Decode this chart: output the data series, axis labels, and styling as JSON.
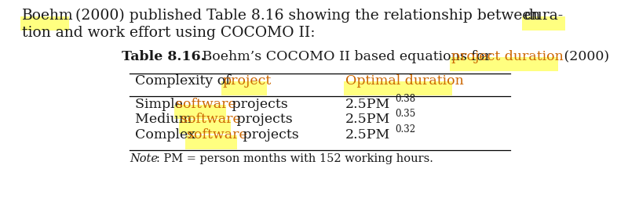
{
  "background_color": "#ffffff",
  "highlight_color": "#ffff80",
  "text_color": "#1a1a1a",
  "orange_color": "#cc6600",
  "font_family": "DejaVu Serif",
  "fs_intro": 13.5,
  "fs_title": 12.5,
  "fs_table": 12.5,
  "fs_super": 8.5,
  "fs_note": 10.5,
  "intro_line1": {
    "segments": [
      {
        "t": "Boehm",
        "hl": true,
        "bold": false,
        "color": null
      },
      {
        "t": " (2000) published Table 8.16 showing the relationship between ",
        "hl": false,
        "bold": false,
        "color": null
      },
      {
        "t": "dura-",
        "hl": true,
        "bold": false,
        "color": null
      }
    ]
  },
  "intro_line2": "tion and work effort using COCOMO II:",
  "table_caption": {
    "segments": [
      {
        "t": "Table 8.16.",
        "bold": true,
        "hl": false,
        "color": null
      },
      {
        "t": " Boehm’s COCOMO II based equations for ",
        "bold": false,
        "hl": false,
        "color": null
      },
      {
        "t": "project duration",
        "bold": false,
        "hl": true,
        "color": "#cc6600"
      },
      {
        "t": " (2000)",
        "bold": false,
        "hl": false,
        "color": null
      }
    ]
  },
  "header": {
    "col1": [
      {
        "t": "Complexity of ",
        "hl": false,
        "color": null
      },
      {
        "t": "project",
        "hl": true,
        "color": "#cc6600"
      }
    ],
    "col2": [
      {
        "t": "Optimal duration",
        "hl": true,
        "color": "#cc6600"
      }
    ]
  },
  "rows": [
    {
      "col1": [
        {
          "t": "Simple ",
          "hl": false,
          "color": null
        },
        {
          "t": "software",
          "hl": true,
          "color": "#cc6600"
        },
        {
          "t": " projects",
          "hl": false,
          "color": null
        }
      ],
      "formula": "2.5PM",
      "exp": "0.38"
    },
    {
      "col1": [
        {
          "t": "Medium ",
          "hl": false,
          "color": null
        },
        {
          "t": "software",
          "hl": true,
          "color": "#cc6600"
        },
        {
          "t": " projects",
          "hl": false,
          "color": null
        }
      ],
      "formula": "2.5PM",
      "exp": "0.35"
    },
    {
      "col1": [
        {
          "t": "Complex ",
          "hl": false,
          "color": null
        },
        {
          "t": "software",
          "hl": true,
          "color": "#cc6600"
        },
        {
          "t": " projects",
          "hl": false,
          "color": null
        }
      ],
      "formula": "2.5PM",
      "exp": "0.32"
    }
  ],
  "note_italic": "Note",
  "note_rest": ": PM = person months with 152 working hours."
}
